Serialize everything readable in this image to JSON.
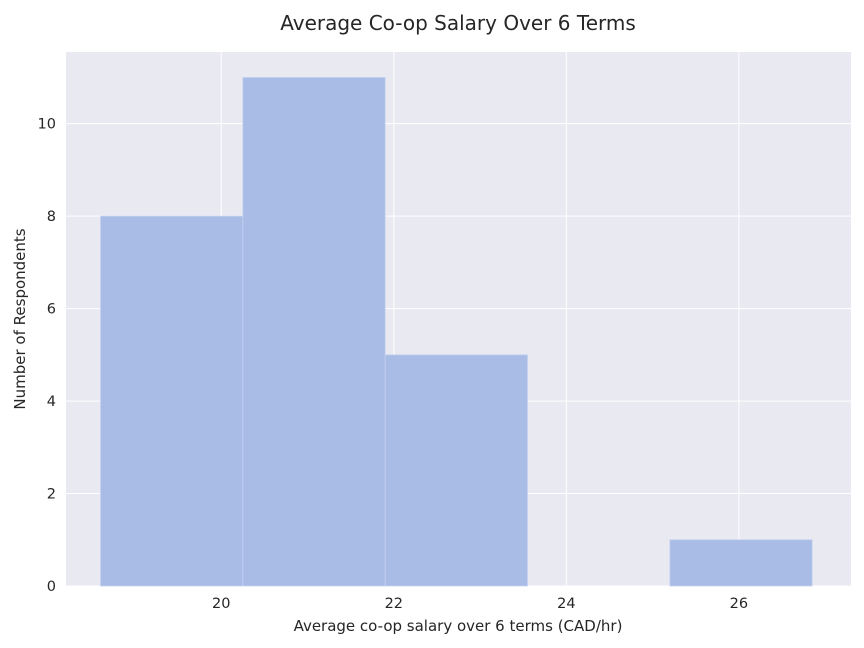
{
  "chart_data": {
    "type": "bar",
    "subtype": "histogram",
    "title": "Average Co-op Salary Over 6 Terms",
    "xlabel": "Average co-op salary over 6 terms (CAD/hr)",
    "ylabel": "Number of Respondents",
    "bins": [
      {
        "start": 18.6,
        "end": 20.25,
        "count": 8
      },
      {
        "start": 20.25,
        "end": 21.9,
        "count": 11
      },
      {
        "start": 21.9,
        "end": 23.55,
        "count": 5
      },
      {
        "start": 23.55,
        "end": 25.2,
        "count": 0
      },
      {
        "start": 25.2,
        "end": 26.85,
        "count": 1
      }
    ],
    "xlim": [
      18.2,
      27.3
    ],
    "ylim": [
      0,
      11.55
    ],
    "xticks": [
      20,
      22,
      24,
      26
    ],
    "yticks": [
      0,
      2,
      4,
      6,
      8,
      10
    ],
    "grid": true,
    "colors": {
      "bar": "#a9bce6",
      "bar_edge": "#c5d2ef",
      "plot_background": "#e9e9f1",
      "grid": "#ffffff"
    }
  }
}
